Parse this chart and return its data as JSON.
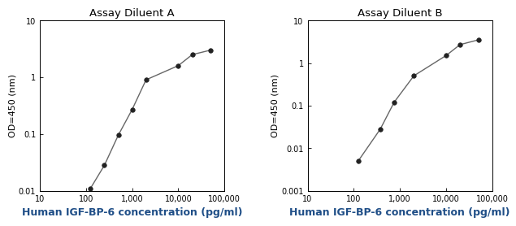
{
  "left": {
    "title": "Assay Diluent A",
    "x": [
      125,
      250,
      500,
      1000,
      2000,
      10000,
      20000,
      50000
    ],
    "y": [
      0.011,
      0.028,
      0.095,
      0.27,
      0.9,
      1.6,
      2.5,
      3.0
    ],
    "xlim": [
      10,
      100000
    ],
    "ylim": [
      0.01,
      10
    ],
    "xticks": [
      10,
      100,
      1000,
      10000,
      100000
    ],
    "xtick_labels": [
      "10",
      "100",
      "1,000",
      "10,000",
      "100,000"
    ],
    "yticks": [
      0.01,
      0.1,
      1,
      10
    ],
    "ytick_labels": [
      "0.01",
      "0.1",
      "1",
      "10"
    ],
    "ylabel": "OD=450 (nm)",
    "xlabel": "Human IGF-BP-6 concentration (pg/ml)"
  },
  "right": {
    "title": "Assay Diluent B",
    "x": [
      125,
      375,
      750,
      2000,
      10000,
      20000,
      50000
    ],
    "y": [
      0.005,
      0.028,
      0.12,
      0.5,
      1.5,
      2.7,
      3.5
    ],
    "xlim": [
      10,
      100000
    ],
    "ylim": [
      0.001,
      10
    ],
    "xticks": [
      10,
      100,
      1000,
      10000,
      100000
    ],
    "xtick_labels": [
      "10",
      "100",
      "1,000",
      "10,000",
      "100,000"
    ],
    "yticks": [
      0.001,
      0.01,
      0.1,
      1,
      10
    ],
    "ytick_labels": [
      "0.001",
      "0.01",
      "0.1",
      "1",
      "10"
    ],
    "ylabel": "OD=450 (nm)",
    "xlabel": "Human IGF-BP-6 concentration (pg/ml)"
  },
  "line_color": "#666666",
  "marker_color": "#222222",
  "marker_size": 4,
  "line_width": 1.0,
  "title_fontsize": 9.5,
  "label_fontsize": 8,
  "tick_fontsize": 7,
  "xlabel_fontsize": 9,
  "xlabel_color": "#1f4e87",
  "xlabel_fontweight": "bold"
}
